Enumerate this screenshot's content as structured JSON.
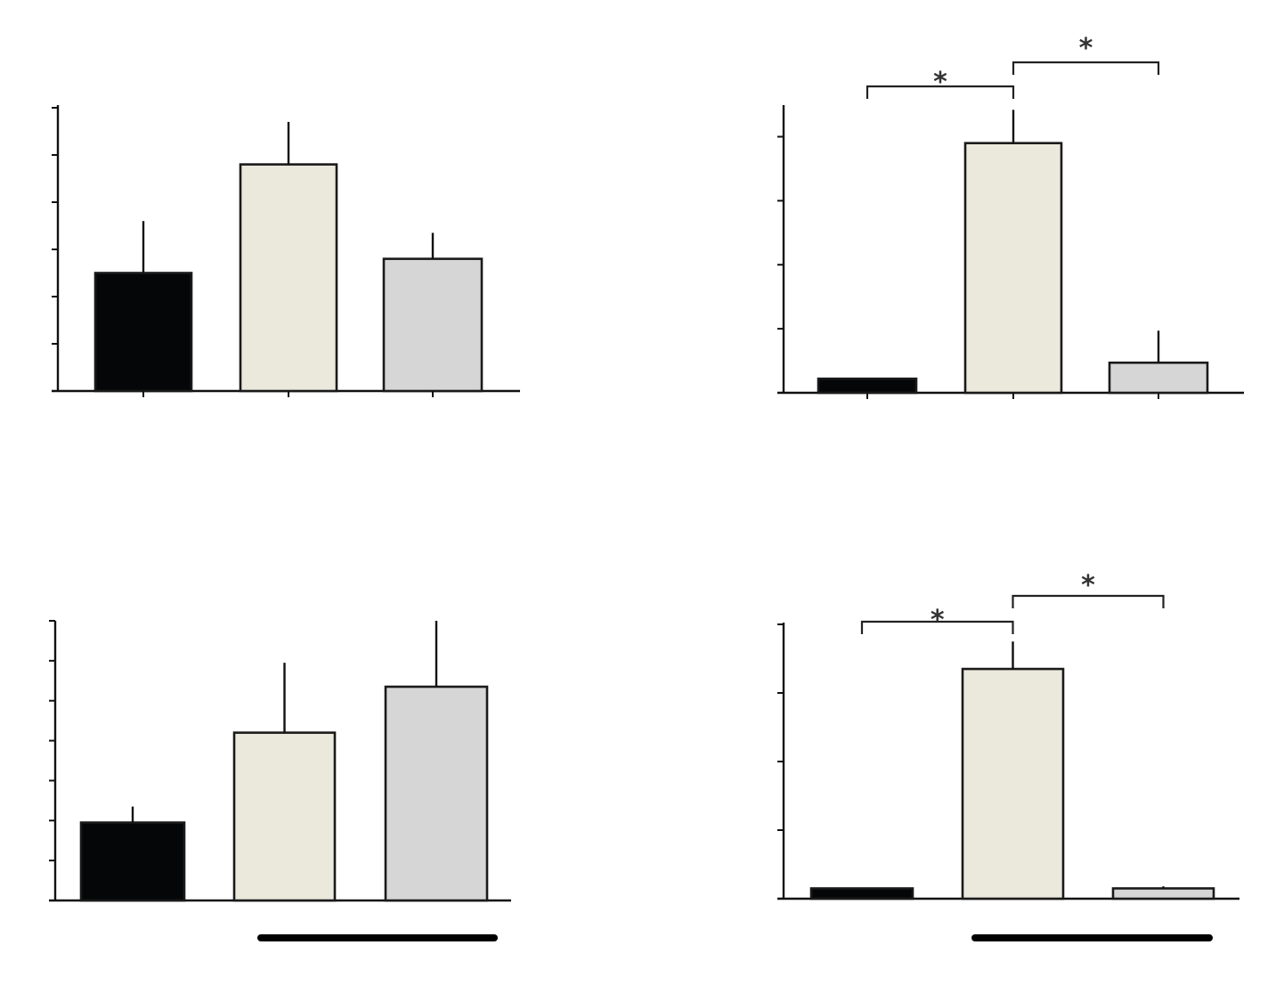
{
  "colors": {
    "series_fill": [
      "#050608",
      "#ebe8dc",
      "#d6d6d6"
    ],
    "axis": "#111111",
    "group_bar": "#000000"
  },
  "chart_data": [
    {
      "type": "bar",
      "panel": "top-left",
      "title": "",
      "xlabel": "",
      "ylabel": "",
      "categories": [
        "",
        "",
        ""
      ],
      "values": [
        2.5,
        4.8,
        2.8
      ],
      "errors": [
        1.1,
        0.9,
        0.55
      ],
      "ylim": [
        0,
        6
      ],
      "y_ticks": [
        0,
        1,
        2,
        3,
        4,
        5,
        6
      ],
      "significance": [],
      "group_underline": false
    },
    {
      "type": "bar",
      "panel": "top-right",
      "title": "",
      "xlabel": "",
      "ylabel": "",
      "categories": [
        "",
        "",
        ""
      ],
      "values": [
        0.22,
        3.9,
        0.47
      ],
      "errors": [
        0.0,
        0.52,
        0.5
      ],
      "ylim": [
        0,
        4.5
      ],
      "y_ticks": [
        0,
        1,
        2,
        3,
        4
      ],
      "significance": [
        {
          "from": 0,
          "to": 1,
          "label": "*"
        },
        {
          "from": 1,
          "to": 2,
          "label": "*"
        }
      ],
      "group_underline": false
    },
    {
      "type": "bar",
      "panel": "bottom-left",
      "title": "",
      "xlabel": "",
      "ylabel": "",
      "categories": [
        "",
        "",
        ""
      ],
      "values": [
        1.95,
        4.2,
        5.35
      ],
      "errors": [
        0.4,
        1.75,
        1.65
      ],
      "ylim": [
        0,
        7
      ],
      "y_ticks": [
        0,
        1,
        2,
        3,
        4,
        5,
        6,
        7
      ],
      "significance": [],
      "group_underline": true
    },
    {
      "type": "bar",
      "panel": "bottom-right",
      "title": "",
      "xlabel": "",
      "ylabel": "",
      "categories": [
        "",
        "",
        ""
      ],
      "values": [
        0.15,
        3.35,
        0.15
      ],
      "errors": [
        0.0,
        0.4,
        0.03
      ],
      "ylim": [
        0,
        4
      ],
      "y_ticks": [
        0,
        1,
        2,
        3,
        4
      ],
      "significance": [
        {
          "from": 0,
          "to": 1,
          "label": "*"
        },
        {
          "from": 1,
          "to": 2,
          "label": "*"
        }
      ],
      "group_underline": true
    }
  ]
}
